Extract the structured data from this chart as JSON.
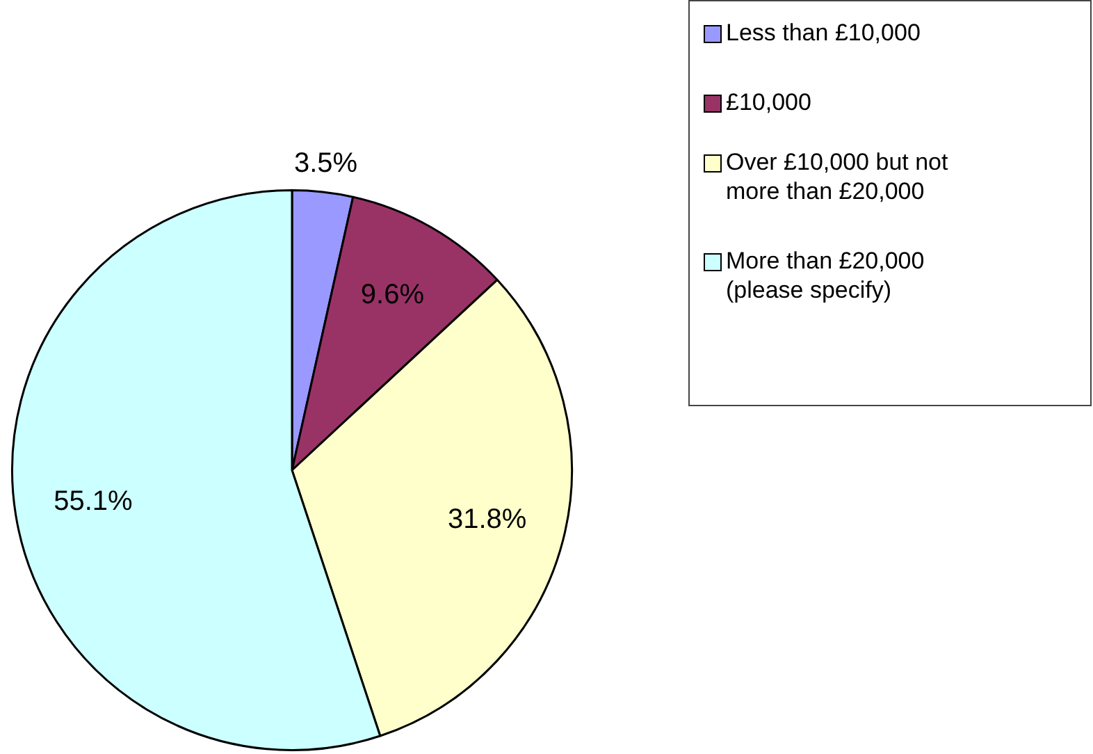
{
  "chart_data": {
    "type": "pie",
    "categories": [
      "Less than £10,000",
      "£10,000",
      "Over £10,000 but not more than £20,000",
      "More than £20,000 (please specify)"
    ],
    "values": [
      3.5,
      9.6,
      31.8,
      55.1
    ],
    "colors": [
      "#9999ff",
      "#993366",
      "#ffffcc",
      "#ccffff"
    ],
    "value_labels": [
      "3.5%",
      "9.6%",
      "31.8%",
      "55.1%"
    ],
    "legend": "top right"
  }
}
